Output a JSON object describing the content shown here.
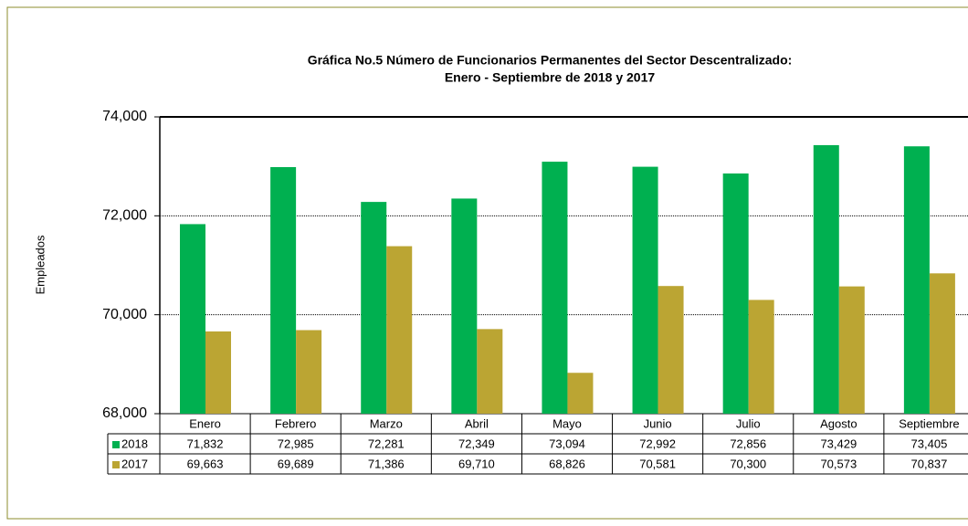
{
  "chart_data": {
    "type": "bar",
    "title": "Gráfica No.5 Número de Funcionarios Permanentes del Sector Descentralizado:",
    "subtitle": "Enero - Septiembre de 2018 y 2017",
    "y_label": "Empleados",
    "categories": [
      "Enero",
      "Febrero",
      "Marzo",
      "Abril",
      "Mayo",
      "Junio",
      "Julio",
      "Agosto",
      "Septiembre"
    ],
    "series": [
      {
        "name": "2018",
        "color": "#00b050",
        "values": [
          71832,
          72985,
          72281,
          72349,
          73094,
          72992,
          72856,
          73429,
          73405
        ],
        "value_labels": [
          "71,832",
          "72,985",
          "72,281",
          "72,349",
          "73,094",
          "72,992",
          "72,856",
          "73,429",
          "73,405"
        ]
      },
      {
        "name": "2017",
        "color": "#bba533",
        "values": [
          69663,
          69689,
          71386,
          69710,
          68826,
          70581,
          70300,
          70573,
          70837
        ],
        "value_labels": [
          "69,663",
          "69,689",
          "71,386",
          "69,710",
          "68,826",
          "70,581",
          "70,300",
          "70,573",
          "70,837"
        ]
      }
    ],
    "ylim": [
      68000,
      74000
    ],
    "yticks": [
      {
        "value": 68000,
        "label": "68,000"
      },
      {
        "value": 70000,
        "label": "70,000"
      },
      {
        "value": 72000,
        "label": "72,000"
      },
      {
        "value": 74000,
        "label": "74,000"
      }
    ],
    "grid": true
  }
}
